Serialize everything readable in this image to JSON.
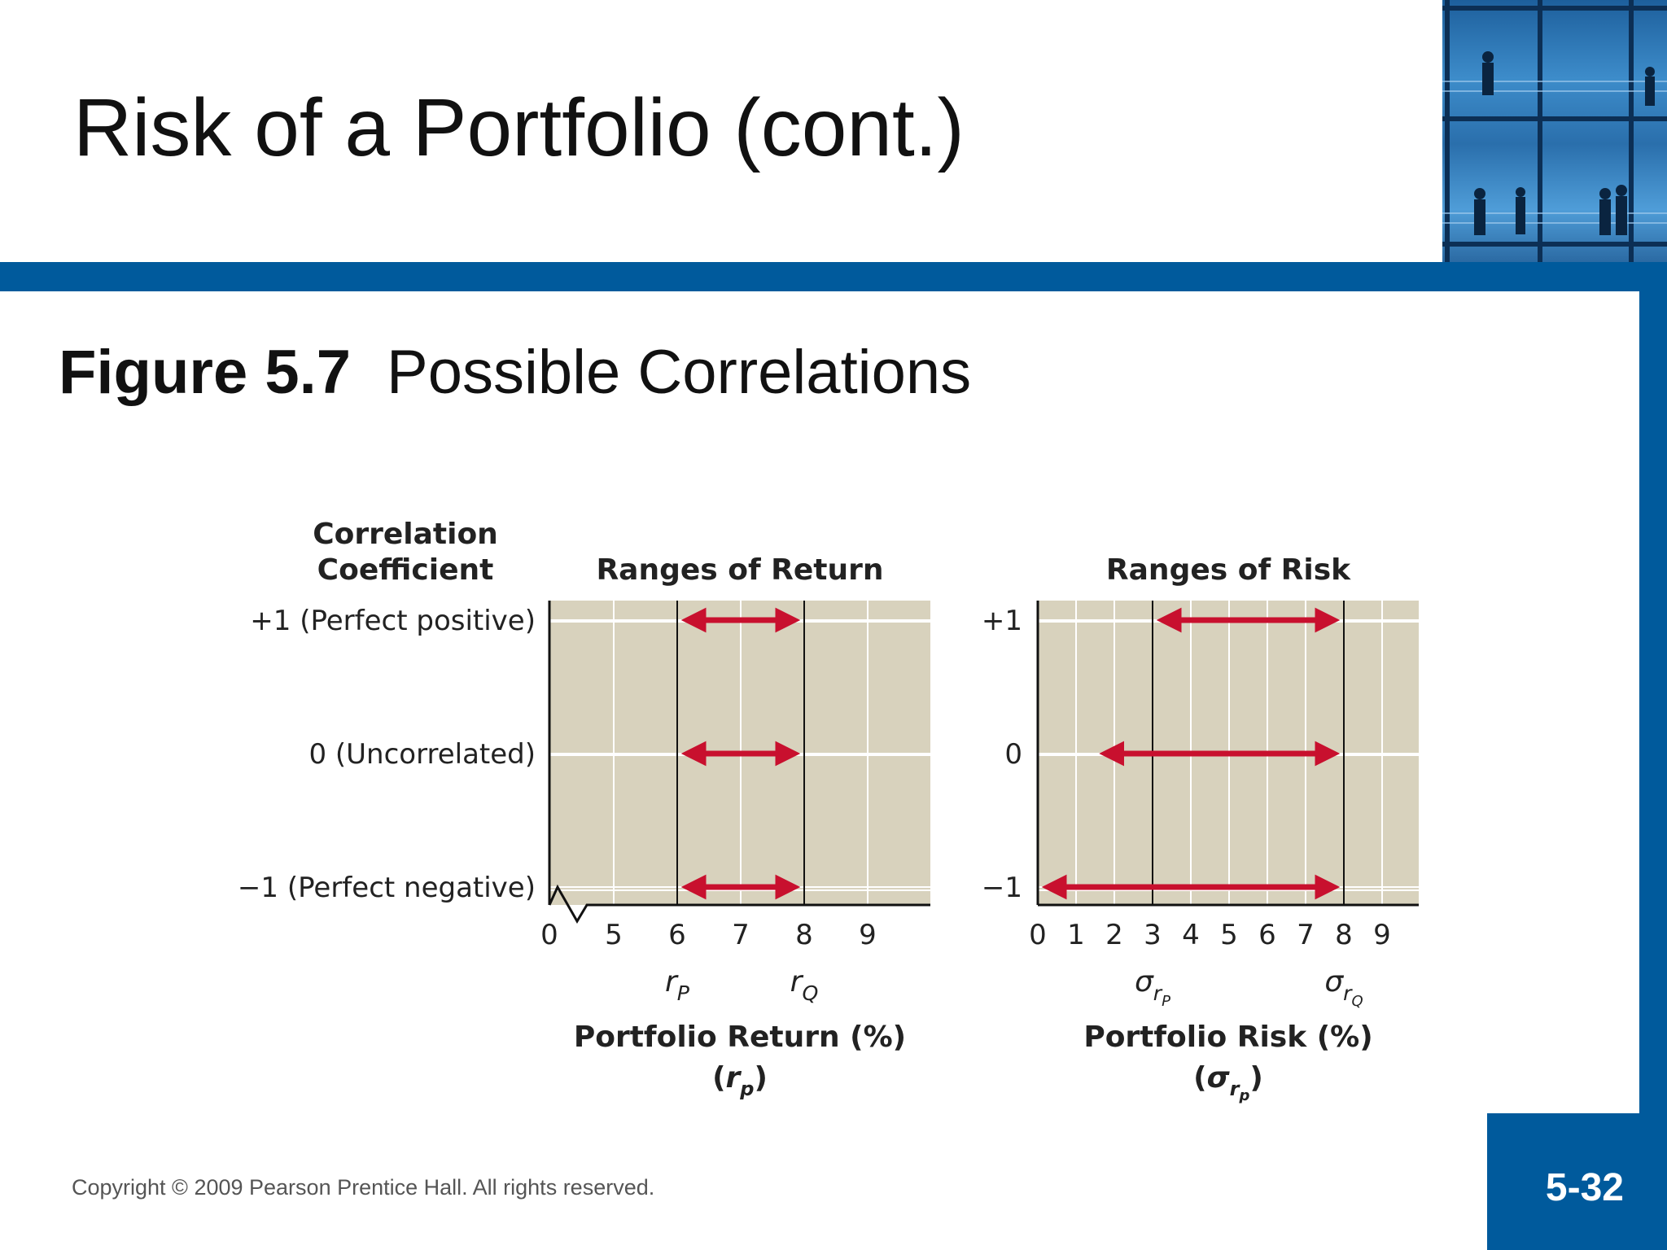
{
  "slide": {
    "title": "Risk of a Portfolio (cont.)",
    "figure_number": "Figure 5.7",
    "figure_caption": "Possible Correlations",
    "copyright": "Copyright © 2009 Pearson Prentice Hall. All rights reserved.",
    "page_number": "5-32"
  },
  "colors": {
    "band": "#005a9c",
    "plot_bg": "#d8d2bd",
    "grid": "#ffffff",
    "arrow": "#c8102e"
  },
  "chart_data": [
    {
      "type": "range",
      "title": "Ranges of Return",
      "row_header": "Correlation\nCoefficient",
      "rows": [
        "+1 (Perfect positive)",
        "0 (Uncorrelated)",
        "−1 (Perfect negative)"
      ],
      "x_ticks": [
        "0",
        "5",
        "6",
        "7",
        "8",
        "9"
      ],
      "axis_break": "between 0 and 5",
      "reference_lines": [
        6,
        8
      ],
      "reference_labels": [
        {
          "symbol": "r",
          "sub": "P",
          "at": 6
        },
        {
          "symbol": "r",
          "sub": "Q",
          "at": 8
        }
      ],
      "ranges": [
        {
          "row": "+1 (Perfect positive)",
          "from": 6,
          "to": 8
        },
        {
          "row": "0 (Uncorrelated)",
          "from": 6,
          "to": 8
        },
        {
          "row": "−1 (Perfect negative)",
          "from": 6,
          "to": 8
        }
      ],
      "xlabel": "Portfolio Return (%)",
      "xlabel_symbol": {
        "symbol": "r",
        "sub": "p"
      },
      "grid": true
    },
    {
      "type": "range",
      "title": "Ranges of Risk",
      "rows": [
        "+1",
        "0",
        "−1"
      ],
      "x_ticks": [
        "0",
        "1",
        "2",
        "3",
        "4",
        "5",
        "6",
        "7",
        "8",
        "9"
      ],
      "reference_lines": [
        3,
        8
      ],
      "reference_labels": [
        {
          "symbol": "σ",
          "sub": "r",
          "subsub": "P",
          "at": 3
        },
        {
          "symbol": "σ",
          "sub": "r",
          "subsub": "Q",
          "at": 8
        }
      ],
      "ranges": [
        {
          "row": "+1",
          "from": 3,
          "to": 8
        },
        {
          "row": "0",
          "from": 1.5,
          "to": 8
        },
        {
          "row": "−1",
          "from": 0,
          "to": 8
        }
      ],
      "xlabel": "Portfolio Risk (%)",
      "xlabel_symbol": {
        "symbol": "σ",
        "sub": "r",
        "subsub": "p"
      },
      "grid": true
    }
  ]
}
